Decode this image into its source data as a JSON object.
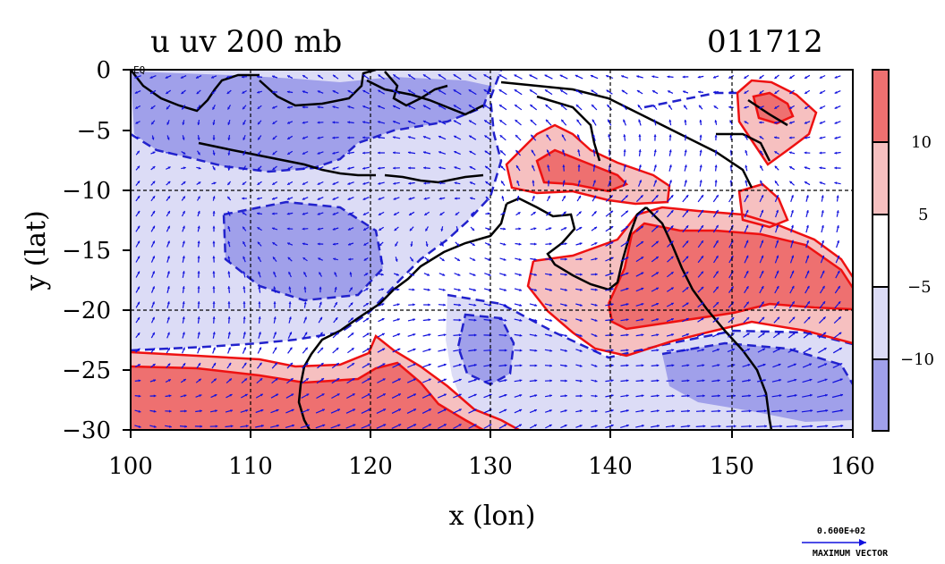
{
  "title_left": "u uv 200 mb",
  "title_right": "011712",
  "eq_label": "EQ",
  "x_axis": {
    "label": "x (lon)",
    "range": [
      100,
      160
    ],
    "ticks": [
      "100",
      "110",
      "120",
      "130",
      "140",
      "150",
      "160"
    ]
  },
  "y_axis": {
    "label": "y (lat)",
    "range": [
      -30,
      0
    ],
    "ticks": [
      "0",
      "−5",
      "−10",
      "−15",
      "−20",
      "−25",
      "−30"
    ]
  },
  "colorbar": {
    "labels": [
      "10",
      "5",
      "−5",
      "−10"
    ],
    "colors": [
      "#ee7070",
      "#f6c0c0",
      "#ffffff",
      "#dcdcf6",
      "#a0a0ea"
    ]
  },
  "vector_key": {
    "value": "0.600E+02",
    "label": "MAXIMUM VECTOR"
  },
  "colors": {
    "strong_pos": "#ee7070",
    "weak_pos": "#f6c0c0",
    "weak_neg": "#dcdcf6",
    "strong_neg": "#a0a0ea",
    "contour_pos": "#ee1111",
    "contour_neg": "#2222cc",
    "vector": "#1111dd",
    "coast": "#000000"
  }
}
